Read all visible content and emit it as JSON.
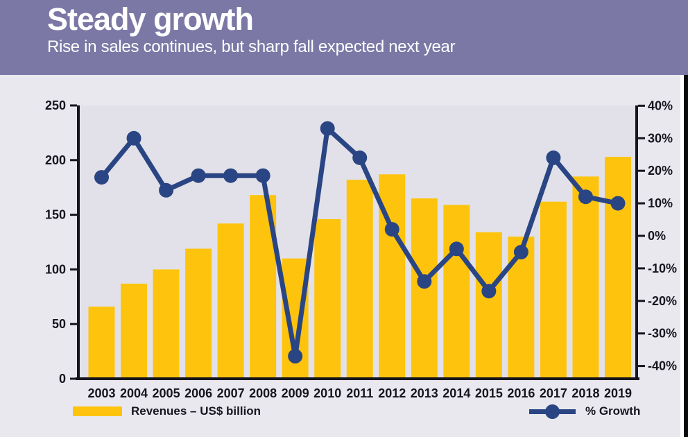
{
  "header": {
    "title": "Steady growth",
    "subtitle": "Rise in sales continues, but sharp fall expected next year"
  },
  "legend": {
    "revenues_label": "Revenues – US$ billion",
    "growth_label": "% Growth"
  },
  "colors": {
    "header_bg": "#7b78a6",
    "bar_yellow": "#fec40d",
    "line_navy": "#2a4583",
    "axis_ink": "#16151d",
    "outer_bg": "#e9e8ef",
    "plot_bg": "#e2e1e9"
  },
  "chart_data": {
    "type": "bar",
    "subtype": "combo-bar-line-dual-axis",
    "title": "Steady growth",
    "subtitle": "Rise in sales continues, but sharp fall expected next year",
    "categories": [
      "2003",
      "2004",
      "2005",
      "2006",
      "2007",
      "2008",
      "2009",
      "2010",
      "2011",
      "2012",
      "2013",
      "2014",
      "2015",
      "2016",
      "2017",
      "2018",
      "2019"
    ],
    "series": [
      {
        "name": "Revenues – US$ billion",
        "type": "bar",
        "axis": "left",
        "color": "#fec40d",
        "values": [
          66,
          87,
          100,
          119,
          142,
          168,
          110,
          146,
          182,
          187,
          165,
          159,
          134,
          130,
          162,
          185,
          203
        ]
      },
      {
        "name": "% Growth",
        "type": "line",
        "axis": "right",
        "color": "#2a4583",
        "values": [
          18,
          30,
          14,
          18.5,
          18.5,
          18.5,
          -37,
          33,
          24,
          2,
          -14,
          -4,
          -17,
          -5,
          24,
          12,
          10
        ]
      }
    ],
    "left_axis": {
      "label": "",
      "ticks": [
        250,
        200,
        150,
        100,
        50,
        0
      ],
      "range": [
        0,
        250
      ]
    },
    "right_axis": {
      "label": "",
      "ticks": [
        40,
        30,
        20,
        10,
        0,
        -10,
        -20,
        -30,
        -40
      ],
      "tick_suffix": "%",
      "range": [
        -40,
        40
      ]
    },
    "grid": false,
    "legend_position": "bottom",
    "xlabel": "",
    "ylabel": ""
  }
}
